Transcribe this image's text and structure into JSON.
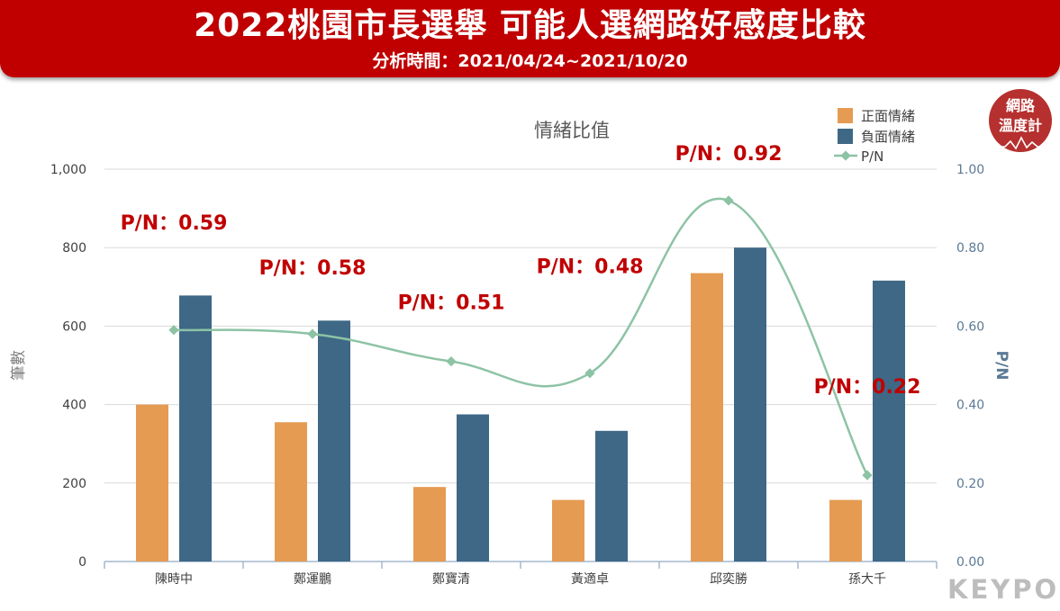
{
  "header": {
    "title": "2022桃園市長選舉 可能人選網路好感度比較",
    "subtitle": "分析時間：2021/04/24~2021/10/20"
  },
  "badge": {
    "line1": "網路",
    "line2": "溫度計"
  },
  "brand": {
    "logo_text": "KEYPO"
  },
  "colors": {
    "banner": "#c00000",
    "positive": "#e69b52",
    "negative": "#3e6886",
    "pn_line": "#8dc3a5",
    "annotation": "#c00000"
  },
  "chart_data": {
    "type": "bar",
    "title": "情緒比值",
    "ylabel": "筆數",
    "y2label": "P/N",
    "ylim": [
      0,
      1000
    ],
    "y2lim": [
      0,
      1.0
    ],
    "yticks": [
      "0",
      "200",
      "400",
      "600",
      "800",
      "1,000"
    ],
    "y2ticks": [
      "0.00",
      "0.20",
      "0.40",
      "0.60",
      "0.80",
      "1.00"
    ],
    "categories": [
      "陳時中",
      "鄭運鵬",
      "鄭寶清",
      "黃適卓",
      "邱奕勝",
      "孫大千"
    ],
    "series": [
      {
        "name": "正面情緒",
        "type": "bar",
        "axis": "left",
        "values": [
          400,
          355,
          190,
          157,
          735,
          157
        ]
      },
      {
        "name": "負面情緒",
        "type": "bar",
        "axis": "left",
        "values": [
          678,
          614,
          375,
          333,
          800,
          716
        ]
      },
      {
        "name": "P/N",
        "type": "line",
        "axis": "right",
        "values": [
          0.59,
          0.58,
          0.51,
          0.48,
          0.92,
          0.22
        ]
      }
    ],
    "annotations": [
      "P/N：0.59",
      "P/N：0.58",
      "P/N：0.51",
      "P/N：0.48",
      "P/N：0.92",
      "P/N：0.22"
    ],
    "legend": "top-right",
    "grid": true
  }
}
